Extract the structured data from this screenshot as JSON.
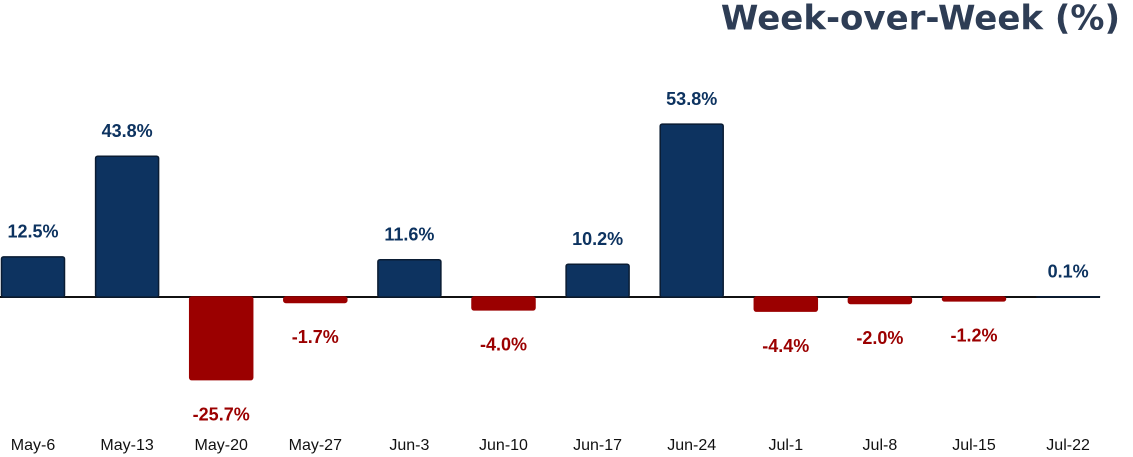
{
  "chart_data": {
    "type": "bar",
    "title": "Week-over-Week (%)",
    "categories": [
      "May-6",
      "May-13",
      "May-20",
      "May-27",
      "Jun-3",
      "Jun-10",
      "Jun-17",
      "Jun-24",
      "Jul-1",
      "Jul-8",
      "Jul-15",
      "Jul-22"
    ],
    "values": [
      12.5,
      43.8,
      -25.7,
      -1.7,
      11.6,
      -4.0,
      10.2,
      53.8,
      -4.4,
      -2.0,
      -1.2,
      0.1
    ],
    "value_labels": [
      "12.5%",
      "43.8%",
      "-25.7%",
      "-1.7%",
      "11.6%",
      "-4.0%",
      "10.2%",
      "53.8%",
      "-4.4%",
      "-2.0%",
      "-1.2%",
      "0.1%"
    ],
    "positive_color": "#0d3360",
    "negative_color": "#9b0000",
    "ylim": [
      -40,
      70
    ],
    "grid": false
  }
}
